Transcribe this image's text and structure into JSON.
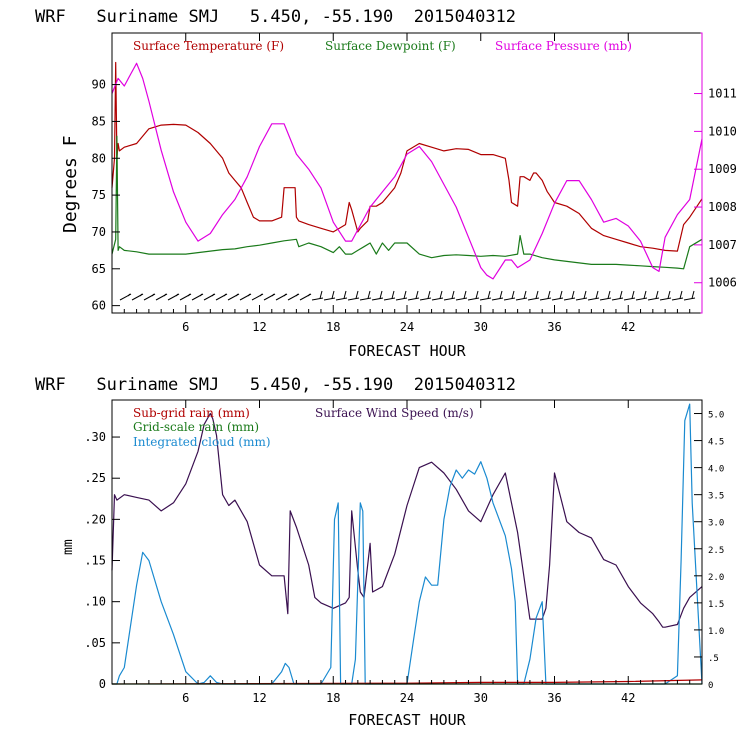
{
  "chart_data": [
    {
      "type": "line",
      "title": "WRF   Suriname SMJ   5.450, -55.190  2015040312",
      "xlabel": "FORECAST HOUR",
      "ylabel": "Degrees F",
      "xlim": [
        0,
        48
      ],
      "ylim": [
        59,
        97
      ],
      "xticks": [
        "6",
        "12",
        "18",
        "24",
        "30",
        "36",
        "42"
      ],
      "xtick_values": [
        6,
        12,
        18,
        24,
        30,
        36,
        42
      ],
      "yticks": [
        "60",
        "65",
        "70",
        "75",
        "80",
        "85",
        "90"
      ],
      "ytick_values": [
        60,
        65,
        70,
        75,
        80,
        85,
        90
      ],
      "y2lim": [
        1005.2,
        1012.6
      ],
      "y2ticks": [
        "1006",
        "1007",
        "1008",
        "1009",
        "1010",
        "1011"
      ],
      "y2tick_values": [
        1006,
        1007,
        1008,
        1009,
        1010,
        1011
      ],
      "legend": [
        "Surface Temperature (F)",
        "Surface Dewpoint (F)",
        "Surface Pressure (mb)"
      ],
      "series": [
        {
          "name": "Surface Temperature (F)",
          "color": "#b00000",
          "axis": "left",
          "x": [
            0,
            0.2,
            0.3,
            0.4,
            0.5,
            0.6,
            1,
            2,
            3,
            4,
            5,
            6,
            7,
            8,
            9,
            9.5,
            10,
            10.5,
            11,
            11.5,
            12,
            12.5,
            13,
            13.8,
            14,
            14.2,
            14.9,
            15,
            15.2,
            16,
            17,
            18,
            19,
            19.3,
            19.5,
            20,
            20.2,
            20.5,
            20.8,
            21,
            21.5,
            22,
            22.5,
            23,
            23.5,
            24,
            25,
            26,
            27,
            28,
            29,
            30,
            31,
            32,
            32.3,
            32.5,
            33,
            33.2,
            33.5,
            34,
            34.3,
            34.5,
            35,
            35.4,
            35.6,
            36,
            37,
            38,
            39,
            40,
            41,
            42,
            43,
            44,
            45,
            46,
            46.5,
            47,
            48
          ],
          "values": [
            76,
            80,
            93,
            80,
            82,
            81,
            81.5,
            82,
            84,
            84.5,
            84.6,
            84.5,
            83.5,
            82,
            80,
            78,
            77,
            76,
            74,
            72,
            71.5,
            71.5,
            71.5,
            72,
            76,
            76,
            76,
            72,
            71.5,
            71,
            70.5,
            70,
            71,
            74,
            73,
            70,
            70.5,
            71,
            71.5,
            73.5,
            73.5,
            74,
            75,
            76,
            78,
            81,
            82,
            81.5,
            81,
            81.3,
            81.2,
            80.5,
            80.5,
            80,
            77,
            74,
            73.5,
            77.5,
            77.5,
            77,
            78,
            78,
            77,
            75.5,
            75,
            74,
            73.5,
            72.5,
            70.5,
            69.5,
            69,
            68.5,
            68,
            67.8,
            67.5,
            67.4,
            71,
            72,
            74.5
          ]
        },
        {
          "name": "Surface Dewpoint (F)",
          "color": "#1a7a1a",
          "axis": "left",
          "x": [
            0,
            0.3,
            0.4,
            0.5,
            0.6,
            1,
            2,
            3,
            4,
            5,
            6,
            7,
            8,
            9,
            10,
            11,
            12,
            13,
            14,
            15,
            15.2,
            16,
            17,
            18,
            18.5,
            19,
            19.5,
            20,
            20.5,
            21,
            21.5,
            22,
            22.5,
            23,
            24,
            25,
            26,
            27,
            28,
            29,
            30,
            31,
            32,
            33,
            33.2,
            33.5,
            34,
            35,
            36,
            37,
            38,
            39,
            40,
            41,
            42,
            43,
            44,
            45,
            46,
            46.5,
            47,
            48
          ],
          "values": [
            67,
            69,
            83,
            67.5,
            68,
            67.5,
            67.3,
            67,
            67,
            67,
            67,
            67.2,
            67.4,
            67.6,
            67.7,
            68,
            68.2,
            68.5,
            68.8,
            69,
            68,
            68.5,
            68,
            67.2,
            68,
            67,
            67,
            67.5,
            68,
            68.5,
            67,
            68.5,
            67.5,
            68.5,
            68.5,
            67,
            66.5,
            66.8,
            66.9,
            66.8,
            66.7,
            66.8,
            66.7,
            67,
            69.5,
            67,
            67,
            66.5,
            66.2,
            66,
            65.8,
            65.6,
            65.6,
            65.6,
            65.5,
            65.4,
            65.3,
            65.2,
            65.1,
            65,
            68,
            69
          ]
        },
        {
          "name": "Surface Pressure (mb)",
          "color": "#e000e0",
          "axis": "right",
          "x": [
            0,
            0.5,
            1,
            1.5,
            2,
            2.5,
            3,
            4,
            5,
            6,
            7,
            8,
            9,
            10,
            11,
            12,
            13,
            14,
            15,
            16,
            17,
            18,
            19,
            19.5,
            20,
            21,
            22,
            23,
            24,
            25,
            26,
            27,
            28,
            29,
            30,
            30.5,
            31,
            32,
            32.5,
            33,
            34,
            35,
            36,
            37,
            38,
            39,
            40,
            41,
            42,
            43,
            44,
            44.5,
            45,
            46,
            47,
            48
          ],
          "values": [
            1011,
            1011.4,
            1011.2,
            1011.5,
            1011.8,
            1011.4,
            1010.8,
            1009.5,
            1008.4,
            1007.6,
            1007.1,
            1007.3,
            1007.8,
            1008.2,
            1008.8,
            1009.6,
            1010.2,
            1010.2,
            1009.4,
            1009,
            1008.5,
            1007.6,
            1007.1,
            1007.1,
            1007.4,
            1008,
            1008.4,
            1008.8,
            1009.4,
            1009.6,
            1009.2,
            1008.6,
            1008,
            1007.2,
            1006.4,
            1006.2,
            1006.1,
            1006.6,
            1006.6,
            1006.4,
            1006.6,
            1007.3,
            1008.1,
            1008.7,
            1008.7,
            1008.2,
            1007.6,
            1007.7,
            1007.5,
            1007.1,
            1006.4,
            1006.3,
            1007.2,
            1007.8,
            1008.2,
            1009.8
          ]
        }
      ]
    },
    {
      "type": "line",
      "title": "WRF   Suriname SMJ   5.450, -55.190  2015040312",
      "xlabel": "FORECAST HOUR",
      "ylabel": "mm",
      "xlim": [
        0,
        48
      ],
      "ylim": [
        0,
        0.345
      ],
      "xticks": [
        "6",
        "12",
        "18",
        "24",
        "30",
        "36",
        "42"
      ],
      "xtick_values": [
        6,
        12,
        18,
        24,
        30,
        36,
        42
      ],
      "yticks": [
        "0",
        ".05",
        ".10",
        ".15",
        ".20",
        ".25",
        ".30"
      ],
      "ytick_values": [
        0,
        0.05,
        0.1,
        0.15,
        0.2,
        0.25,
        0.3
      ],
      "y2lim": [
        0,
        5.25
      ],
      "y2ticks": [
        "0",
        ".5",
        "1.0",
        "1.5",
        "2.0",
        "2.5",
        "3.0",
        "3.5",
        "4.0",
        "4.5",
        "5.0"
      ],
      "y2tick_values": [
        0,
        0.5,
        1,
        1.5,
        2,
        2.5,
        3,
        3.5,
        4,
        4.5,
        5
      ],
      "legend": [
        "Sub-grid rain (mm)",
        "Surface Wind Speed (m/s)",
        "Grid-scale rain (mm)",
        "Integrated cloud (mm)"
      ],
      "series": [
        {
          "name": "Surface Wind Speed (m/s)",
          "color": "#3a1050",
          "axis": "right",
          "x": [
            0,
            0.2,
            0.4,
            1,
            2,
            3,
            4,
            5,
            6,
            7,
            7.5,
            8,
            8.2,
            8.5,
            9,
            9.5,
            10,
            11,
            12,
            13,
            14,
            14.3,
            14.5,
            15,
            16,
            16.5,
            17,
            18,
            19,
            19.3,
            19.5,
            20,
            20.2,
            20.5,
            21,
            21.2,
            22,
            23,
            24,
            25,
            26,
            27,
            28,
            29,
            30,
            31,
            32,
            33,
            33.5,
            34,
            35,
            35.3,
            35.6,
            36,
            37,
            38,
            39,
            40,
            41,
            42,
            43,
            44,
            44.5,
            44.8,
            45,
            46,
            46.5,
            47,
            48
          ],
          "values": [
            2.1,
            3.5,
            3.4,
            3.5,
            3.45,
            3.4,
            3.2,
            3.35,
            3.7,
            4.3,
            4.8,
            5.0,
            4.9,
            4.6,
            3.5,
            3.3,
            3.4,
            3.0,
            2.2,
            2.0,
            2.0,
            1.3,
            3.2,
            2.9,
            2.2,
            1.6,
            1.5,
            1.4,
            1.5,
            1.6,
            3.2,
            2.1,
            1.7,
            1.6,
            2.6,
            1.7,
            1.8,
            2.4,
            3.3,
            4.0,
            4.1,
            3.9,
            3.6,
            3.2,
            3.0,
            3.5,
            3.9,
            2.8,
            2.0,
            1.2,
            1.2,
            1.4,
            2.2,
            3.9,
            3.0,
            2.8,
            2.7,
            2.3,
            2.2,
            1.8,
            1.5,
            1.3,
            1.15,
            1.05,
            1.05,
            1.1,
            1.4,
            1.6,
            1.8
          ]
        },
        {
          "name": "Integrated cloud (mm)",
          "color": "#1a8ad0",
          "axis": "left",
          "x": [
            0,
            0.4,
            0.6,
            1,
            2,
            2.5,
            3,
            4,
            5,
            6,
            7,
            7.5,
            8,
            8.5,
            9,
            13,
            13.8,
            14.1,
            14.4,
            14.8,
            17,
            17.8,
            18.1,
            18.4,
            18.6,
            19.5,
            19.8,
            20.2,
            20.4,
            20.6,
            22,
            23,
            24,
            24.5,
            25,
            25.5,
            26,
            26.5,
            27,
            27.5,
            28,
            28.5,
            29,
            29.5,
            30,
            30.5,
            31,
            32,
            32.5,
            32.8,
            33,
            33.5,
            34,
            34.5,
            35,
            35.3,
            35.8,
            36.2,
            38,
            45,
            46,
            46.3,
            46.6,
            47,
            47.2,
            48
          ],
          "values": [
            0,
            0,
            0.01,
            0.02,
            0.12,
            0.16,
            0.15,
            0.1,
            0.06,
            0.015,
            0,
            0.002,
            0.01,
            0.002,
            0,
            0,
            0.015,
            0.025,
            0.02,
            0,
            0,
            0.02,
            0.2,
            0.22,
            0,
            0,
            0.03,
            0.22,
            0.21,
            0,
            0,
            0,
            0,
            0.05,
            0.1,
            0.13,
            0.12,
            0.12,
            0.2,
            0.24,
            0.26,
            0.25,
            0.26,
            0.255,
            0.27,
            0.25,
            0.22,
            0.18,
            0.14,
            0.1,
            0,
            0,
            0.03,
            0.08,
            0.1,
            0,
            0,
            0,
            0,
            0,
            0.01,
            0.15,
            0.32,
            0.34,
            0.22,
            0
          ]
        },
        {
          "name": "Sub-grid rain (mm)",
          "color": "#b00000",
          "axis": "left",
          "x": [
            0,
            24,
            30,
            36,
            42,
            48
          ],
          "values": [
            0,
            0.001,
            0.002,
            0.002,
            0.003,
            0.005
          ]
        },
        {
          "name": "Grid-scale rain (mm)",
          "color": "#1a7a1a",
          "axis": "left",
          "x": [
            0,
            48
          ],
          "values": [
            0,
            0
          ]
        }
      ]
    }
  ]
}
